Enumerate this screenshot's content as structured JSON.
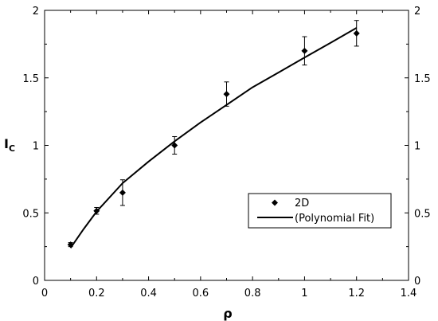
{
  "chart_data": {
    "type": "scatter",
    "xlabel": "ρ",
    "ylabel_main": "I",
    "ylabel_sub": "C",
    "xlim": [
      0,
      1.4
    ],
    "ylim": [
      0,
      2
    ],
    "xticks": [
      0,
      0.2,
      0.4,
      0.6,
      0.8,
      1,
      1.2,
      1.4
    ],
    "xtick_labels": [
      "0",
      "0.2",
      "0.4",
      "0.6",
      "0.8",
      "1",
      "1.2",
      "1.4"
    ],
    "yticks": [
      0,
      0.5,
      1,
      1.5,
      2
    ],
    "ytick_labels": [
      "0",
      "0.5",
      "1",
      "1.5",
      "2"
    ],
    "grid": false,
    "legend_position": "lower-right",
    "series": [
      {
        "name": "2D",
        "kind": "points",
        "marker": "diamond",
        "color": "#000000",
        "x": [
          0.1,
          0.2,
          0.3,
          0.5,
          0.7,
          1.0,
          1.2
        ],
        "y": [
          0.265,
          0.515,
          0.65,
          1.0,
          1.38,
          1.7,
          1.83
        ],
        "err": [
          0.015,
          0.025,
          0.095,
          0.065,
          0.09,
          0.105,
          0.095
        ]
      },
      {
        "name": "(Polynomial Fit)",
        "kind": "line",
        "color": "#000000",
        "x": [
          0.1,
          0.15,
          0.2,
          0.3,
          0.4,
          0.5,
          0.6,
          0.7,
          0.8,
          0.9,
          1.0,
          1.1,
          1.2
        ],
        "y": [
          0.24,
          0.38,
          0.51,
          0.72,
          0.88,
          1.03,
          1.17,
          1.3,
          1.43,
          1.54,
          1.65,
          1.76,
          1.87
        ]
      }
    ]
  }
}
